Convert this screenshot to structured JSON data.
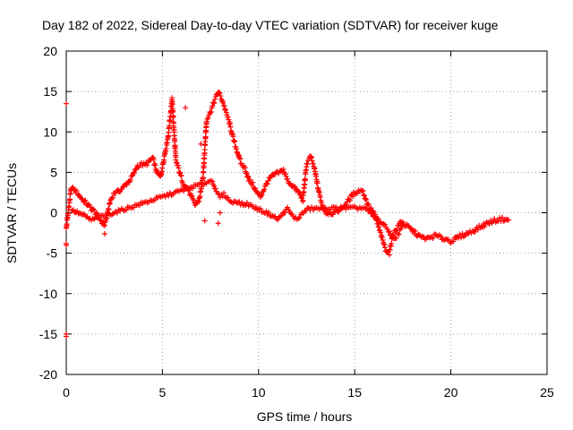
{
  "chart_data": {
    "type": "scatter",
    "title": "Day 182 of 2022, Sidereal Day-to-day VTEC variation (SDTVAR) for receiver kuge",
    "xlabel": "GPS time / hours",
    "ylabel": "SDTVAR / TECUs",
    "xlim": [
      0,
      25
    ],
    "ylim": [
      -20,
      20
    ],
    "x_ticks": [
      0,
      5,
      10,
      15,
      20,
      25
    ],
    "y_ticks": [
      -20,
      -15,
      -10,
      -5,
      0,
      5,
      10,
      15,
      20
    ],
    "grid": true,
    "marker": "+",
    "series": [
      {
        "name": "SDTVAR",
        "color": "#ff0000",
        "trace_x": [
          0.0,
          0.25,
          0.4,
          0.55,
          0.7,
          0.85,
          1.0,
          1.15,
          1.3,
          1.45,
          1.6,
          1.75,
          1.9,
          2.0,
          2.1,
          2.3,
          2.5,
          2.7,
          2.9,
          3.1,
          3.3,
          3.5,
          3.7,
          3.9,
          4.1,
          4.3,
          4.5,
          4.7,
          4.9,
          5.1,
          5.3,
          5.5,
          5.7,
          5.9,
          6.1,
          6.3,
          6.5,
          6.7,
          6.9,
          7.1,
          7.3,
          7.5,
          7.7,
          7.9,
          8.1,
          8.3,
          8.5,
          8.7,
          8.9,
          9.1,
          9.3,
          9.5,
          9.7,
          9.9,
          10.1,
          10.3,
          10.5,
          10.7,
          10.9,
          11.1,
          11.3,
          11.5,
          11.7,
          11.9,
          12.1,
          12.3,
          12.5,
          12.7,
          12.9,
          13.1,
          13.3,
          13.5,
          14.0,
          14.5,
          15.0,
          15.2,
          15.4,
          15.6,
          15.8,
          16.0,
          16.2,
          16.4,
          16.6,
          16.8,
          17.0,
          17.2,
          17.4,
          17.6,
          17.8,
          18.0,
          18.2,
          18.4,
          18.6,
          18.8,
          19.0,
          19.2,
          19.4,
          19.6,
          19.8,
          20.0,
          20.2,
          20.4,
          20.6,
          20.8,
          21.0,
          21.2,
          21.4,
          21.6,
          21.8,
          22.0,
          22.2,
          22.4,
          22.6,
          22.8,
          23.0
        ],
        "trace_y": [
          -2.0,
          3.0,
          2.9,
          2.5,
          2.1,
          1.6,
          1.3,
          0.9,
          0.5,
          0.2,
          -0.3,
          -0.8,
          -1.3,
          -1.5,
          -0.5,
          1.5,
          2.5,
          2.6,
          3.0,
          3.5,
          4.0,
          4.8,
          5.8,
          6.0,
          5.9,
          6.3,
          6.8,
          5.0,
          4.4,
          7.0,
          9.5,
          14.0,
          6.5,
          5.0,
          3.5,
          3.0,
          2.0,
          1.0,
          1.5,
          4.0,
          11.5,
          12.5,
          13.8,
          15.0,
          14.0,
          12.5,
          11.0,
          9.0,
          7.5,
          6.0,
          5.5,
          4.0,
          3.5,
          2.5,
          2.0,
          3.0,
          4.0,
          4.5,
          4.8,
          5.0,
          5.3,
          4.0,
          3.5,
          3.0,
          2.5,
          1.5,
          6.0,
          7.0,
          5.5,
          3.0,
          1.0,
          0.0,
          0.0,
          1.0,
          2.5,
          2.7,
          2.8,
          1.5,
          0.5,
          0.0,
          -1.5,
          -3.0,
          -4.5,
          -5.0,
          -2.5,
          -2.0,
          -1.0,
          -1.5,
          -1.8,
          -2.2,
          -2.6,
          -3.0,
          -3.1,
          -3.2,
          -3.0,
          -2.8,
          -3.0,
          -3.2,
          -3.3,
          -3.5,
          -3.3,
          -3.0,
          -2.8,
          -2.6,
          -2.4,
          -2.2,
          -1.9,
          -1.7,
          -1.4,
          -1.2,
          -1.0,
          -0.9,
          -0.8,
          -0.8,
          -0.9
        ],
        "secondary_x": [
          0.3,
          0.5,
          0.7,
          0.9,
          1.1,
          1.3,
          7.6,
          7.8,
          8.0,
          8.2,
          8.4,
          8.6,
          8.8,
          9.0,
          9.2,
          9.4,
          10.4,
          10.6,
          10.8,
          11.0,
          11.2,
          11.5,
          11.8,
          12.0,
          12.2,
          12.4,
          12.6,
          15.5,
          15.7,
          15.9,
          16.1,
          16.3,
          16.5,
          16.7,
          16.9,
          17.1,
          17.3,
          17.5
        ],
        "secondary_y": [
          0.3,
          0.1,
          -0.1,
          -0.3,
          -0.6,
          -0.9,
          4.0,
          2.5,
          2.0,
          2.3,
          1.8,
          1.2,
          1.5,
          1.2,
          1.0,
          1.1,
          0.0,
          -0.2,
          -0.5,
          -0.8,
          -0.3,
          0.5,
          -0.5,
          -0.8,
          -0.3,
          0.2,
          0.5,
          0.6,
          0.2,
          -0.3,
          -0.6,
          -1.0,
          -1.5,
          -2.0,
          -2.8,
          -3.2,
          -2.5,
          -1.5
        ],
        "outliers_x": [
          0.0,
          0.0,
          0.0,
          0.0,
          0.0,
          7.0,
          7.2,
          6.2,
          2.0,
          8.0,
          7.9
        ],
        "outliers_y": [
          13.5,
          -15.0,
          -15.3,
          -4.0,
          -3.8,
          8.5,
          -1.0,
          13.0,
          -2.6,
          0.0,
          -1.3
        ]
      }
    ]
  }
}
